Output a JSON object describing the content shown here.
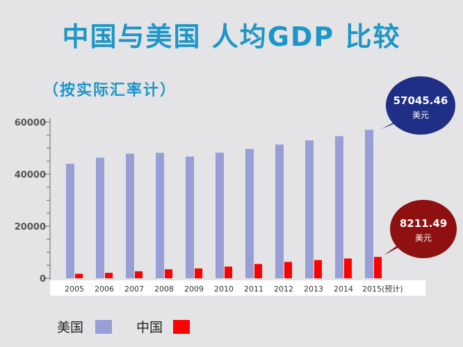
{
  "chart_data": {
    "type": "bar",
    "title": "中国与美国 人均GDP 比较",
    "subtitle": "（按实际汇率计）",
    "categories": [
      "2005",
      "2006",
      "2007",
      "2008",
      "2009",
      "2010",
      "2011",
      "2012",
      "2013",
      "2014",
      "2015(预计)"
    ],
    "series": [
      {
        "name": "美国",
        "color": "#979fd6",
        "values": [
          44000,
          46300,
          47900,
          48200,
          46800,
          48300,
          49700,
          51400,
          53000,
          54600,
          57045.46
        ]
      },
      {
        "name": "中国",
        "color": "#ff0000",
        "values": [
          1750,
          2100,
          2700,
          3450,
          3800,
          4500,
          5500,
          6300,
          7000,
          7600,
          8211.49
        ]
      }
    ],
    "yticks": [
      0,
      20000,
      40000,
      60000
    ],
    "ylim": [
      0,
      60000
    ],
    "legend_position": "bottom-left",
    "callouts": [
      {
        "value": "57045.46",
        "unit": "美元",
        "color": "#1f2f86"
      },
      {
        "value": "8211.49",
        "unit": "美元",
        "color": "#8e1010"
      }
    ]
  }
}
